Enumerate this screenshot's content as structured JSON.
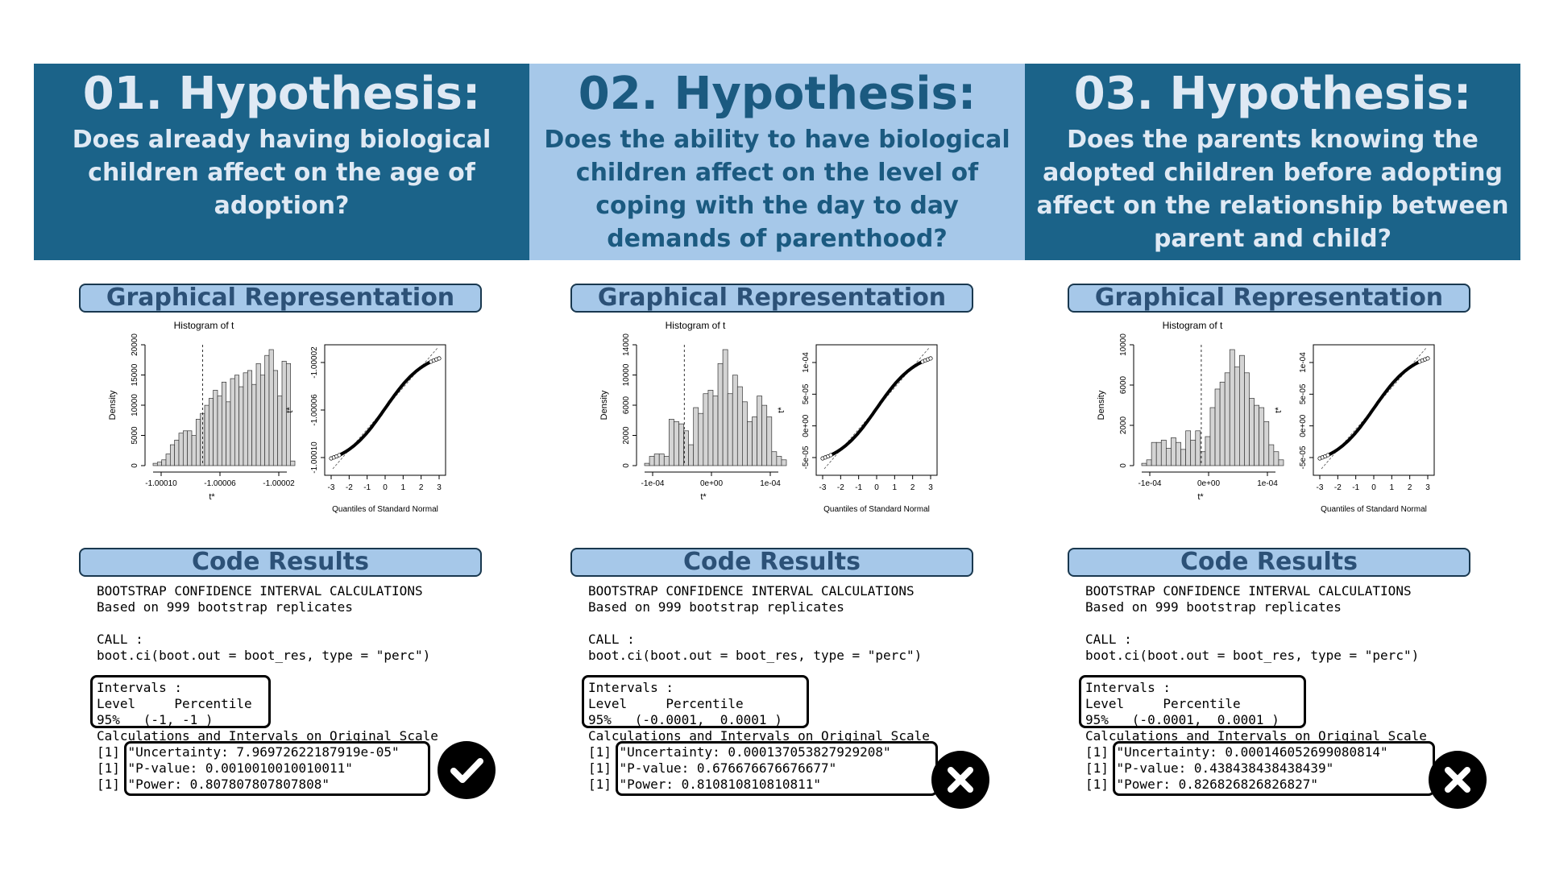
{
  "panels": [
    {
      "title": "01. Hypothesis:",
      "question": "Does already having biological children affect on the age of adoption?",
      "graph_label": "Graphical Representation",
      "code_label": "Code Results",
      "verdict": "check-icon",
      "histogram": {
        "title": "Histogram of t",
        "xlabel": "t*",
        "ylabel": "Density",
        "x_ticks": [
          "-1.00010",
          "-1.00006",
          "-1.00002"
        ],
        "y_ticks": [
          "0",
          "5000",
          "10000",
          "15000",
          "20000"
        ]
      },
      "qqplot": {
        "xlabel": "Quantiles of Standard Normal",
        "ylabel": "t*",
        "x_ticks": [
          "-3",
          "-2",
          "-1",
          "0",
          "1",
          "2",
          "3"
        ],
        "y_ticks": [
          "-1.00010",
          "-1.00006",
          "-1.00002"
        ]
      },
      "code_lines": [
        "BOOTSTRAP CONFIDENCE INTERVAL CALCULATIONS",
        "Based on 999 bootstrap replicates",
        "",
        "CALL :",
        "boot.ci(boot.out = boot_res, type = \"perc\")",
        "",
        "Intervals :",
        "Level     Percentile",
        "95%   (-1, -1 )",
        "Calculations and Intervals on Original Scale",
        "[1] \"Uncertainty: 7.96972622187919e-05\"",
        "[1] \"P-value: 0.0010010010010011\"",
        "[1] \"Power: 0.807807807807808\""
      ]
    },
    {
      "title": "02. Hypothesis:",
      "question": "Does the ability to have biological children affect on the level of coping with the day to day demands of parenthood?",
      "graph_label": "Graphical Representation",
      "code_label": "Code Results",
      "verdict": "cross-icon",
      "histogram": {
        "title": "Histogram of t",
        "xlabel": "t*",
        "ylabel": "Density",
        "x_ticks": [
          "-1e-04",
          "0e+00",
          "1e-04"
        ],
        "y_ticks": [
          "0",
          "2000",
          "6000",
          "10000",
          "14000"
        ]
      },
      "qqplot": {
        "xlabel": "Quantiles of Standard Normal",
        "ylabel": "t*",
        "x_ticks": [
          "-3",
          "-2",
          "-1",
          "0",
          "1",
          "2",
          "3"
        ],
        "y_ticks": [
          "-5e-05",
          "0e+00",
          "5e-05",
          "1e-04"
        ]
      },
      "code_lines": [
        "BOOTSTRAP CONFIDENCE INTERVAL CALCULATIONS",
        "Based on 999 bootstrap replicates",
        "",
        "CALL :",
        "boot.ci(boot.out = boot_res, type = \"perc\")",
        "",
        "Intervals :",
        "Level     Percentile",
        "95%   (-0.0001,  0.0001 )",
        "Calculations and Intervals on Original Scale",
        "[1] \"Uncertainty: 0.000137053827929208\"",
        "[1] \"P-value: 0.676676676676677\"",
        "[1] \"Power: 0.810810810810811\""
      ]
    },
    {
      "title": "03. Hypothesis:",
      "question": "Does the parents knowing the adopted children before adopting affect on the relationship between parent and child?",
      "graph_label": "Graphical Representation",
      "code_label": "Code Results",
      "verdict": "cross-icon",
      "histogram": {
        "title": "Histogram of t",
        "xlabel": "t*",
        "ylabel": "Density",
        "x_ticks": [
          "-1e-04",
          "0e+00",
          "1e-04"
        ],
        "y_ticks": [
          "0",
          "2000",
          "6000",
          "10000"
        ]
      },
      "qqplot": {
        "xlabel": "Quantiles of Standard Normal",
        "ylabel": "t*",
        "x_ticks": [
          "-3",
          "-2",
          "-1",
          "0",
          "1",
          "2",
          "3"
        ],
        "y_ticks": [
          "-5e-05",
          "0e+00",
          "5e-05",
          "1e-04"
        ]
      },
      "code_lines": [
        "BOOTSTRAP CONFIDENCE INTERVAL CALCULATIONS",
        "Based on 999 bootstrap replicates",
        "",
        "CALL :",
        "boot.ci(boot.out = boot_res, type = \"perc\")",
        "",
        "Intervals :",
        "Level     Percentile",
        "95%   (-0.0001,  0.0001 )",
        "Calculations and Intervals on Original Scale",
        "[1] \"Uncertainty: 0.000146052699080814\"",
        "[1] \"P-value: 0.438438438438439\"",
        "[1] \"Power: 0.826826826826827\""
      ]
    }
  ],
  "colors": {
    "header_dark": "#1b6389",
    "header_light": "#a6c8e9",
    "pill": "#a6c8e9",
    "pill_text": "#2c5177"
  }
}
